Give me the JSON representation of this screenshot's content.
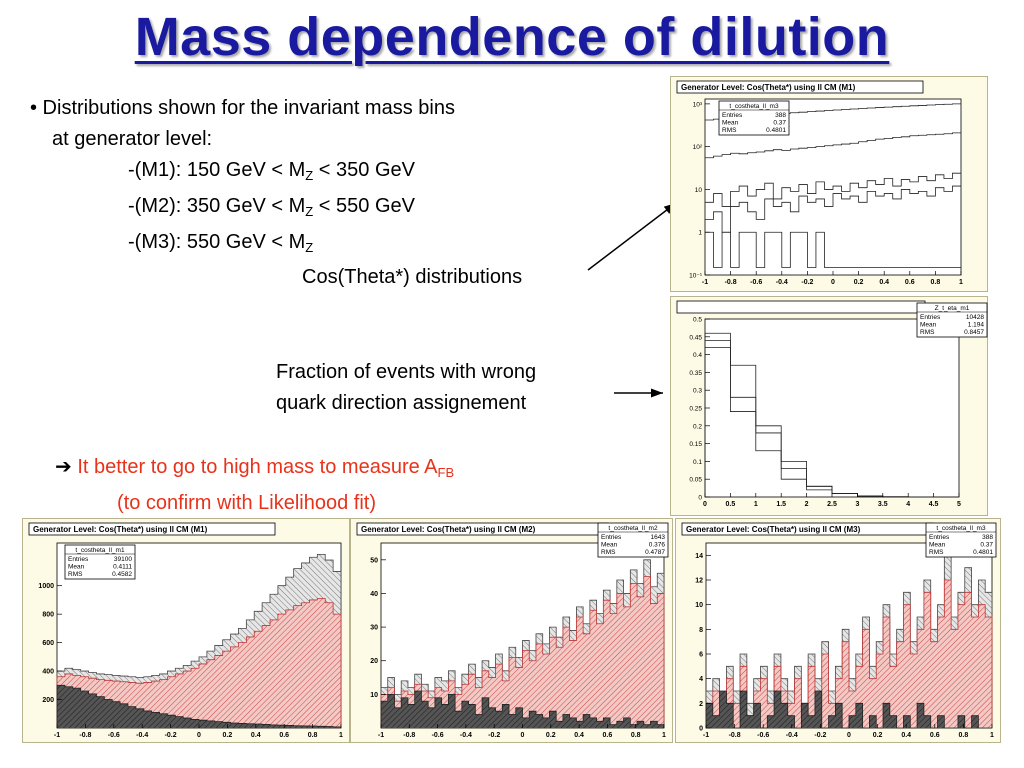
{
  "slide": {
    "title": "Mass dependence of dilution",
    "bullet_line1": "• Distributions shown for the invariant mass bins",
    "bullet_line2": "at generator level:",
    "m1": {
      "prefix": "-(M1): 150 GeV < M",
      "sub": "Z",
      "suffix": " < 350 GeV"
    },
    "m2": {
      "prefix": "-(M2):  350 GeV < M",
      "sub": "Z",
      "suffix": " < 550 GeV"
    },
    "m3": {
      "prefix": "-(M3):  550 GeV < M",
      "sub": "Z",
      "suffix": ""
    },
    "label_costheta": "Cos(Theta*) distributions",
    "label_fraction_line1": "Fraction of events with wrong",
    "label_fraction_line2": "quark direction assignement",
    "conclusion_arrow": "➔",
    "conclusion_line1": " It better to go to high mass to measure A",
    "conclusion_sub": "FB",
    "conclusion_line2": "(to confirm with Likelihood fit)",
    "accent_color": "#1a1aa0",
    "highlight_color": "#e8321a"
  },
  "chart_data": [
    {
      "id": "top-log",
      "type": "line",
      "title": "Generator Level: Cos(Theta*) using ll CM (M1)",
      "stats": {
        "name": "t_costheta_ll_m3",
        "rows": [
          [
            "Entries",
            "388"
          ],
          [
            "Mean",
            "0.37"
          ],
          [
            "RMS",
            "0.4801"
          ]
        ]
      },
      "log_y": true,
      "ylim": [
        0.1,
        1300
      ],
      "y_ticks": [
        {
          "v": 1000,
          "l": "10³"
        },
        {
          "v": 100,
          "l": "10²"
        },
        {
          "v": 10,
          "l": "10"
        },
        {
          "v": 1,
          "l": "1"
        },
        {
          "v": 0.1,
          "l": "10⁻¹"
        }
      ],
      "x_ticks": [
        "-1",
        "-0.8",
        "-0.6",
        "-0.4",
        "-0.2",
        "0",
        "0.2",
        "0.4",
        "0.6",
        "0.8",
        "1"
      ],
      "xlim": [
        -1,
        1
      ],
      "series": [
        {
          "values": [
            420,
            440,
            460,
            480,
            500,
            520,
            540,
            560,
            580,
            600,
            620,
            640,
            660,
            680,
            700,
            720,
            740,
            760,
            780,
            800,
            820,
            840,
            860,
            880,
            900,
            920,
            940,
            960,
            980,
            1000
          ]
        },
        {
          "values": [
            55,
            60,
            65,
            70,
            68,
            72,
            75,
            80,
            85,
            82,
            88,
            92,
            95,
            100,
            105,
            110,
            115,
            120,
            130,
            140,
            150,
            155,
            165,
            170,
            180,
            185,
            190,
            195,
            200,
            210
          ]
        },
        {
          "values": [
            5,
            8,
            4,
            9,
            12,
            7,
            10,
            14,
            6,
            11,
            9,
            13,
            8,
            15,
            10,
            12,
            9,
            14,
            11,
            16,
            13,
            18,
            12,
            17,
            15,
            20,
            16,
            22,
            18,
            24
          ]
        },
        {
          "values": [
            2,
            3,
            1,
            4,
            5,
            3,
            2,
            6,
            4,
            5,
            3,
            7,
            5,
            6,
            4,
            8,
            6,
            7,
            5,
            9,
            7,
            8,
            6,
            10,
            8,
            9,
            7,
            11,
            9,
            12
          ]
        },
        {
          "values": [
            1,
            0.15,
            1,
            0.15,
            1,
            1,
            0.15,
            1,
            1,
            0.15,
            1,
            1,
            0.15,
            1,
            0.15,
            0.15,
            0.15,
            0.15,
            0.15,
            0.15,
            0.15,
            0.15,
            0.15,
            0.15,
            0.15,
            0.15,
            0.15,
            0.15,
            0.15,
            0.15
          ]
        }
      ]
    },
    {
      "id": "fraction",
      "type": "line",
      "title": "",
      "stats": {
        "name": "Z_t_eta_m1",
        "rows": [
          [
            "Entries",
            "10428"
          ],
          [
            "Mean",
            "1.194"
          ],
          [
            "RMS",
            "0.8457"
          ]
        ]
      },
      "ylim": [
        0,
        0.5
      ],
      "xlim": [
        0,
        5
      ],
      "y_ticks": [
        "0.5",
        "0.45",
        "0.4",
        "0.35",
        "0.3",
        "0.25",
        "0.2",
        "0.15",
        "0.1",
        "0.05",
        "0"
      ],
      "x_ticks": [
        "0",
        "0.5",
        "1",
        "1.5",
        "2",
        "2.5",
        "3",
        "3.5",
        "4",
        "4.5",
        "5"
      ],
      "series": [
        {
          "values": [
            0.46,
            0.37,
            0.2,
            0.1,
            0.03,
            0.01,
            0.003,
            0.001,
            0,
            0
          ]
        },
        {
          "values": [
            0.44,
            0.28,
            0.18,
            0.08,
            0.03,
            0.01,
            0.002,
            0,
            0,
            0
          ]
        },
        {
          "values": [
            0.42,
            0.24,
            0.13,
            0.05,
            0.02,
            0.01,
            0.002,
            0,
            0,
            0
          ]
        }
      ]
    },
    {
      "id": "m1",
      "type": "bar",
      "title": "Generator Level: Cos(Theta*) using ll CM (M1)",
      "stats": {
        "name": "t_costheta_ll_m1",
        "rows": [
          [
            "Entries",
            "39100"
          ],
          [
            "Mean",
            "0.4111"
          ],
          [
            "RMS",
            "0.4582"
          ]
        ]
      },
      "ylim": [
        0,
        1300
      ],
      "y_ticks": [
        "1000",
        "800",
        "600",
        "400",
        "200"
      ],
      "x_ticks": [
        "-1",
        "-0.8",
        "-0.6",
        "-0.4",
        "-0.2",
        "0",
        "0.2",
        "0.4",
        "0.6",
        "0.8",
        "1"
      ],
      "xlim": [
        -1,
        1
      ],
      "series": [
        {
          "name": "",
          "values": [
            400,
            420,
            410,
            400,
            390,
            380,
            375,
            370,
            365,
            360,
            355,
            360,
            370,
            380,
            400,
            420,
            440,
            470,
            500,
            540,
            580,
            620,
            660,
            700,
            760,
            820,
            880,
            940,
            1000,
            1060,
            1120,
            1160,
            1200,
            1220,
            1180,
            1100
          ]
        },
        {
          "name": "",
          "values": [
            360,
            380,
            370,
            360,
            350,
            340,
            335,
            330,
            325,
            320,
            315,
            320,
            330,
            340,
            360,
            380,
            400,
            420,
            450,
            480,
            510,
            540,
            570,
            600,
            640,
            680,
            720,
            760,
            800,
            830,
            860,
            880,
            900,
            910,
            880,
            800
          ]
        },
        {
          "name": "",
          "values": [
            300,
            290,
            280,
            260,
            240,
            220,
            200,
            185,
            170,
            150,
            135,
            120,
            110,
            100,
            90,
            80,
            70,
            60,
            55,
            50,
            45,
            40,
            35,
            32,
            30,
            28,
            25,
            22,
            20,
            18,
            16,
            15,
            14,
            12,
            10,
            8
          ]
        }
      ]
    },
    {
      "id": "m2",
      "type": "bar",
      "title": "Generator Level: Cos(Theta*) using ll CM  (M2)",
      "stats": {
        "name": "t_costheta_ll_m2",
        "rows": [
          [
            "Entries",
            "1643"
          ],
          [
            "Mean",
            "0.376"
          ],
          [
            "RMS",
            "0.4787"
          ]
        ]
      },
      "ylim": [
        0,
        55
      ],
      "y_ticks": [
        "50",
        "40",
        "30",
        "20",
        "10"
      ],
      "x_ticks": [
        "-1",
        "-0.8",
        "-0.6",
        "-0.4",
        "-0.2",
        "0",
        "0.2",
        "0.4",
        "0.6",
        "0.8",
        "1"
      ],
      "xlim": [
        -1,
        1
      ],
      "series": [
        {
          "name": "",
          "values": [
            12,
            15,
            10,
            14,
            12,
            16,
            13,
            11,
            15,
            14,
            17,
            12,
            16,
            19,
            15,
            20,
            18,
            22,
            17,
            24,
            21,
            26,
            23,
            28,
            25,
            30,
            27,
            33,
            29,
            36,
            31,
            38,
            34,
            41,
            37,
            44,
            40,
            47,
            43,
            50,
            42,
            46
          ]
        },
        {
          "name": "",
          "values": [
            10,
            12,
            8,
            11,
            10,
            13,
            11,
            9,
            12,
            11,
            14,
            10,
            13,
            16,
            12,
            17,
            15,
            19,
            14,
            21,
            18,
            23,
            20,
            25,
            22,
            27,
            24,
            30,
            26,
            33,
            28,
            35,
            31,
            38,
            34,
            40,
            36,
            43,
            39,
            45,
            37,
            40
          ]
        },
        {
          "name": "",
          "values": [
            8,
            10,
            6,
            9,
            7,
            11,
            8,
            6,
            9,
            7,
            10,
            5,
            8,
            7,
            4,
            9,
            6,
            5,
            7,
            4,
            6,
            3,
            5,
            4,
            3,
            5,
            2,
            4,
            3,
            2,
            4,
            3,
            2,
            3,
            1,
            2,
            3,
            1,
            2,
            1,
            2,
            1
          ]
        }
      ]
    },
    {
      "id": "m3",
      "type": "bar",
      "title": "Generator Level: Cos(Theta*) using ll CM  (M3)",
      "stats": {
        "name": "t_costheta_ll_m3",
        "rows": [
          [
            "Entries",
            "388"
          ],
          [
            "Mean",
            "0.37"
          ],
          [
            "RMS",
            "0.4801"
          ]
        ]
      },
      "ylim": [
        0,
        15
      ],
      "y_ticks": [
        "14",
        "12",
        "10",
        "8",
        "6",
        "4",
        "2",
        "0"
      ],
      "x_ticks": [
        "-1",
        "-0.8",
        "-0.6",
        "-0.4",
        "-0.2",
        "0",
        "0.2",
        "0.4",
        "0.6",
        "0.8",
        "1"
      ],
      "xlim": [
        -1,
        1
      ],
      "series": [
        {
          "name": "",
          "values": [
            3,
            4,
            2,
            5,
            3,
            6,
            2,
            4,
            5,
            3,
            6,
            4,
            3,
            5,
            2,
            6,
            4,
            7,
            3,
            5,
            8,
            4,
            6,
            9,
            5,
            7,
            10,
            6,
            8,
            11,
            7,
            9,
            12,
            8,
            10,
            14,
            9,
            11,
            13,
            10,
            12,
            11
          ]
        },
        {
          "name": "",
          "values": [
            2,
            3,
            1,
            4,
            2,
            5,
            1,
            3,
            4,
            2,
            5,
            3,
            2,
            4,
            1,
            5,
            3,
            6,
            2,
            4,
            7,
            3,
            5,
            8,
            4,
            6,
            9,
            5,
            7,
            10,
            6,
            8,
            11,
            7,
            9,
            12,
            8,
            10,
            11,
            9,
            10,
            9
          ]
        },
        {
          "name": "",
          "values": [
            2,
            1,
            3,
            2,
            0,
            3,
            1,
            2,
            0,
            1,
            3,
            2,
            1,
            0,
            2,
            1,
            3,
            0,
            1,
            2,
            0,
            1,
            2,
            0,
            1,
            0,
            2,
            1,
            0,
            1,
            0,
            2,
            1,
            0,
            1,
            0,
            0,
            1,
            0,
            1,
            0,
            0
          ]
        }
      ]
    }
  ]
}
